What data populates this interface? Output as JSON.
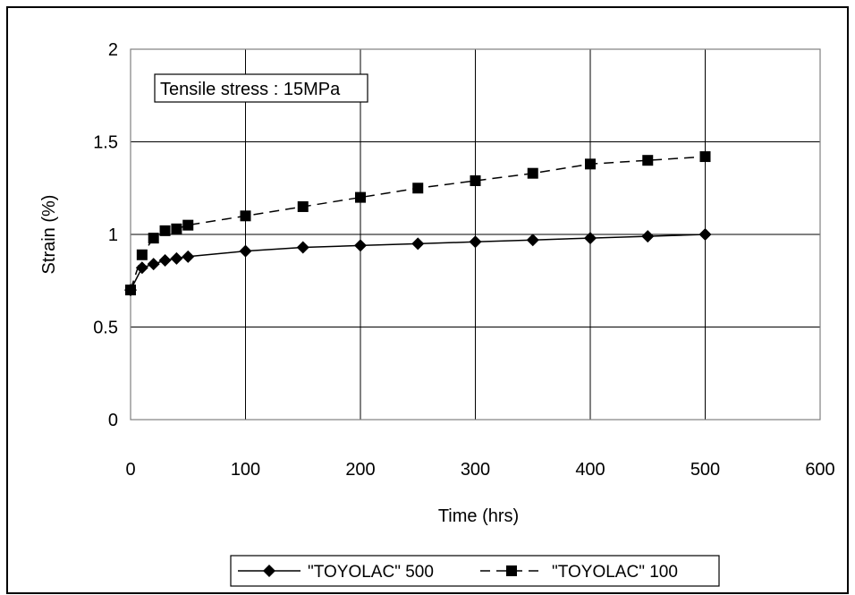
{
  "chart_data": {
    "type": "line",
    "annotation": "Tensile stress : 15MPa",
    "xlabel": "Time (hrs)",
    "ylabel": "Strain (%)",
    "xlim": [
      0,
      600
    ],
    "ylim": [
      0,
      2
    ],
    "x_ticks": [
      "0",
      "100",
      "200",
      "300",
      "400",
      "500",
      "600"
    ],
    "y_ticks": [
      "0",
      "0.5",
      "1",
      "1.5",
      "2"
    ],
    "grid": true,
    "legend_position": "bottom",
    "series": [
      {
        "name": "\"TOYOLAC\" 500",
        "marker": "diamond",
        "line_style": "solid",
        "x": [
          0,
          10,
          20,
          30,
          40,
          50,
          100,
          150,
          200,
          250,
          300,
          350,
          400,
          450,
          500
        ],
        "y": [
          0.7,
          0.82,
          0.84,
          0.86,
          0.87,
          0.88,
          0.91,
          0.93,
          0.94,
          0.95,
          0.96,
          0.97,
          0.98,
          0.99,
          1.0
        ]
      },
      {
        "name": "\"TOYOLAC\" 100",
        "marker": "square",
        "line_style": "dashed",
        "x": [
          0,
          10,
          20,
          30,
          40,
          50,
          100,
          150,
          200,
          250,
          300,
          350,
          400,
          450,
          500
        ],
        "y": [
          0.7,
          0.89,
          0.98,
          1.02,
          1.03,
          1.05,
          1.1,
          1.15,
          1.2,
          1.25,
          1.29,
          1.33,
          1.38,
          1.4,
          1.42
        ]
      }
    ]
  }
}
